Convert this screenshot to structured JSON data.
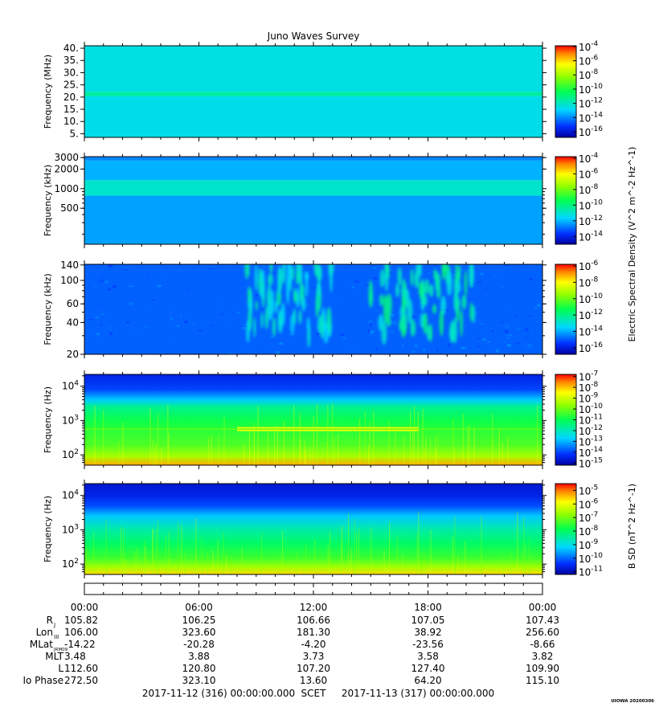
{
  "title": "Juno Waves Survey",
  "footer": {
    "start": "2017-11-12 (316) 00:00:00.000",
    "scet": "SCET",
    "end": "2017-11-13 (317) 00:00:00.000",
    "tag": "UIOWA 20200306"
  },
  "shared_labels": {
    "electric_colorbar": "Electric Spectral Density (V^2 m^-2 Hz^-1)",
    "magnetic_colorbar": "B SD (nT^2 Hz^-1)"
  },
  "chart_data": [
    {
      "type": "heatmap",
      "panel": 1,
      "ylabel": "Frequency (MHz)",
      "yscale": "linear",
      "ylim": [
        3.5,
        41
      ],
      "yticks": [
        {
          "v": 5,
          "label": "5."
        },
        {
          "v": 10,
          "label": "10."
        },
        {
          "v": 15,
          "label": "15."
        },
        {
          "v": 20,
          "label": "20."
        },
        {
          "v": 25,
          "label": "25."
        },
        {
          "v": 30,
          "label": "30."
        },
        {
          "v": 35,
          "label": "35."
        },
        {
          "v": 40,
          "label": "40."
        }
      ],
      "bands": [
        {
          "from": 3.5,
          "to": 20.3,
          "log_density": -12.6
        },
        {
          "from": 20.3,
          "to": 22.2,
          "log_density": -11.6
        },
        {
          "from": 22.2,
          "to": 41,
          "log_density": -12.5
        }
      ],
      "colorbar": {
        "min": -16.8,
        "max": -3.9,
        "ticks": [
          {
            "exp": -4,
            "label": "-4"
          },
          {
            "exp": -6,
            "label": "-6"
          },
          {
            "exp": -8,
            "label": "-8"
          },
          {
            "exp": -10,
            "label": "-10"
          },
          {
            "exp": -12,
            "label": "-12"
          },
          {
            "exp": -14,
            "label": "-14"
          },
          {
            "exp": -16,
            "label": "-16"
          }
        ]
      }
    },
    {
      "type": "heatmap",
      "panel": 2,
      "ylabel": "Frequency (kHz)",
      "yscale": "log",
      "ylim": [
        140,
        3100
      ],
      "yticks": [
        {
          "v": 500,
          "label": "500"
        },
        {
          "v": 1000,
          "label": "1000"
        },
        {
          "v": 2000,
          "label": "2000"
        },
        {
          "v": 3000,
          "label": "3000"
        }
      ],
      "bands": [
        {
          "from": 140,
          "to": 780,
          "log_density": -12.3
        },
        {
          "from": 780,
          "to": 1350,
          "log_density": -11.0
        },
        {
          "from": 1350,
          "to": 2700,
          "log_density": -12.1
        },
        {
          "from": 2700,
          "to": 3100,
          "log_density": -12.6
        }
      ],
      "colorbar": {
        "min": -15,
        "max": -3.8,
        "ticks": [
          {
            "exp": -4,
            "label": "-4"
          },
          {
            "exp": -6,
            "label": "-6"
          },
          {
            "exp": -8,
            "label": "-8"
          },
          {
            "exp": -10,
            "label": "-10"
          },
          {
            "exp": -12,
            "label": "-12"
          },
          {
            "exp": -14,
            "label": "-14"
          }
        ]
      }
    },
    {
      "type": "heatmap",
      "panel": 3,
      "ylabel": "Frequency (kHz)",
      "yscale": "log",
      "ylim": [
        20,
        142
      ],
      "yticks": [
        {
          "v": 20,
          "label": "20"
        },
        {
          "v": 40,
          "label": "40"
        },
        {
          "v": 60,
          "label": "60"
        },
        {
          "v": 100,
          "label": "100"
        },
        {
          "v": 140,
          "label": "140"
        }
      ],
      "background_log_density": -14.9,
      "bursts": [
        {
          "t_start": 8.5,
          "t_end": 13.0,
          "f_low": 30,
          "f_high": 140,
          "log_density": -13.3
        },
        {
          "t_start": 15.0,
          "t_end": 20.5,
          "f_low": 28,
          "f_high": 140,
          "log_density": -12.8
        }
      ],
      "colorbar": {
        "min": -16.8,
        "max": -5.8,
        "ticks": [
          {
            "exp": -6,
            "label": "-6"
          },
          {
            "exp": -8,
            "label": "-8"
          },
          {
            "exp": -10,
            "label": "-10"
          },
          {
            "exp": -12,
            "label": "-12"
          },
          {
            "exp": -14,
            "label": "-14"
          },
          {
            "exp": -16,
            "label": "-16"
          }
        ]
      }
    },
    {
      "type": "heatmap",
      "panel": 4,
      "ylabel": "Frequency (Hz)",
      "yscale": "log",
      "ylim": [
        50,
        22000
      ],
      "yticks": [
        {
          "v": 100,
          "base": "10",
          "exp": "2"
        },
        {
          "v": 1000,
          "base": "10",
          "exp": "3"
        },
        {
          "v": 10000,
          "base": "10",
          "exp": "4"
        }
      ],
      "profile": [
        {
          "f": 50,
          "log_density": -7.8
        },
        {
          "f": 90,
          "log_density": -9.4
        },
        {
          "f": 200,
          "log_density": -10.3
        },
        {
          "f": 500,
          "log_density": -10.6
        },
        {
          "f": 1000,
          "log_density": -10.9
        },
        {
          "f": 2500,
          "log_density": -11.6
        },
        {
          "f": 4000,
          "log_density": -12.8
        },
        {
          "f": 8000,
          "log_density": -14.0
        },
        {
          "f": 22000,
          "log_density": -14.5
        }
      ],
      "line_feature": {
        "f": 560,
        "t_start": 8.0,
        "t_end": 17.5,
        "log_density": -8.6
      },
      "colorbar": {
        "min": -15.2,
        "max": -6.8,
        "ticks": [
          {
            "exp": -7,
            "label": "-7"
          },
          {
            "exp": -8,
            "label": "-8"
          },
          {
            "exp": -9,
            "label": "-9"
          },
          {
            "exp": -10,
            "label": "-10"
          },
          {
            "exp": -11,
            "label": "-11"
          },
          {
            "exp": -12,
            "label": "-12"
          },
          {
            "exp": -13,
            "label": "-13"
          },
          {
            "exp": -14,
            "label": "-14"
          },
          {
            "exp": -15,
            "label": "-15"
          }
        ]
      }
    },
    {
      "type": "heatmap",
      "panel": 5,
      "ylabel": "Frequency (Hz)",
      "yscale": "log",
      "ylim": [
        50,
        22000
      ],
      "yticks": [
        {
          "v": 100,
          "base": "10",
          "exp": "2"
        },
        {
          "v": 1000,
          "base": "10",
          "exp": "3"
        },
        {
          "v": 10000,
          "base": "10",
          "exp": "4"
        }
      ],
      "profile": [
        {
          "f": 50,
          "log_density": -5.6
        },
        {
          "f": 80,
          "log_density": -6.6
        },
        {
          "f": 150,
          "log_density": -7.4
        },
        {
          "f": 400,
          "log_density": -8.0
        },
        {
          "f": 1000,
          "log_density": -8.5
        },
        {
          "f": 2500,
          "log_density": -9.3
        },
        {
          "f": 5000,
          "log_density": -10.2
        },
        {
          "f": 10000,
          "log_density": -10.6
        },
        {
          "f": 22000,
          "log_density": -10.8
        }
      ],
      "colorbar": {
        "min": -11.2,
        "max": -4.5,
        "ticks": [
          {
            "exp": -5,
            "label": "-5"
          },
          {
            "exp": -6,
            "label": "-6"
          },
          {
            "exp": -7,
            "label": "-7"
          },
          {
            "exp": -8,
            "label": "-8"
          },
          {
            "exp": -9,
            "label": "-9"
          },
          {
            "exp": -10,
            "label": "-10"
          },
          {
            "exp": -11,
            "label": "-11"
          }
        ]
      }
    }
  ],
  "time_axis": {
    "range_hours": [
      0,
      24
    ],
    "major_hours": [
      0,
      6,
      12,
      18,
      24
    ],
    "minor_every_hours": 1
  },
  "ephemeris": {
    "columns": [
      "00:00",
      "06:00",
      "12:00",
      "18:00",
      "00:00"
    ],
    "rows": [
      {
        "label": "R",
        "sub": "J",
        "values": [
          "105.82",
          "106.25",
          "106.66",
          "107.05",
          "107.43"
        ]
      },
      {
        "label": "Lon",
        "sub": "III",
        "values": [
          "106.00",
          "323.60",
          "181.30",
          "38.92",
          "256.60"
        ]
      },
      {
        "label": "MLat",
        "sub": "JRM09",
        "values": [
          "-14.22",
          "-20.28",
          "-4.20",
          "-23.56",
          "-8.66"
        ]
      },
      {
        "label": "MLT",
        "sub": "",
        "values": [
          "3.48",
          "3.88",
          "3.73",
          "3.58",
          "3.82"
        ]
      },
      {
        "label": "L",
        "sub": "",
        "values": [
          "112.60",
          "120.80",
          "107.20",
          "127.40",
          "109.90"
        ]
      },
      {
        "label": "Io Phase",
        "sub": "",
        "values": [
          "272.50",
          "323.10",
          "13.60",
          "64.20",
          "115.10"
        ]
      }
    ]
  }
}
